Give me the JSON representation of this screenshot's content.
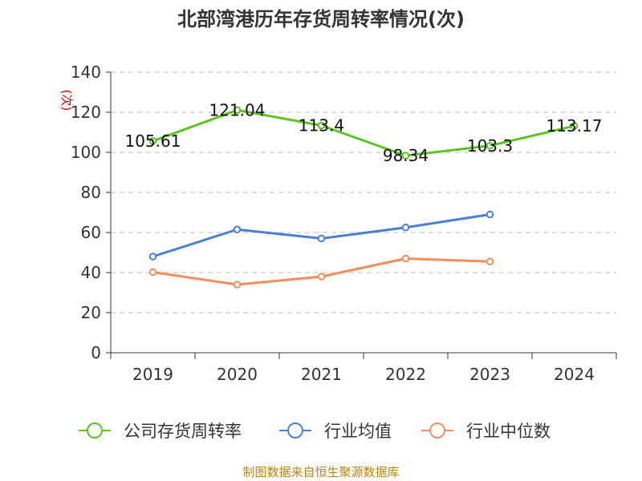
{
  "chart_data": {
    "type": "line",
    "title": "北部湾港历年存货周转率情况(次)",
    "ylabel": "(次)",
    "xlabel": "",
    "categories": [
      "2019",
      "2020",
      "2021",
      "2022",
      "2023",
      "2024"
    ],
    "ylim": [
      0,
      140
    ],
    "yticks": [
      0,
      20,
      40,
      60,
      80,
      100,
      120,
      140
    ],
    "grid": true,
    "legend_position": "bottom",
    "series": [
      {
        "name": "公司存货周转率",
        "color": "#5cc41f",
        "values": [
          105.61,
          121.04,
          113.4,
          98.34,
          103.3,
          113.17
        ],
        "labels": [
          "105.61",
          "121.04",
          "113.4",
          "98.34",
          "103.3",
          "113.17"
        ]
      },
      {
        "name": "行业均值",
        "color": "#4a7fd6",
        "values": [
          48,
          61.5,
          57,
          62.5,
          69,
          null
        ]
      },
      {
        "name": "行业中位数",
        "color": "#f48c5c",
        "values": [
          40.2,
          34,
          38,
          47,
          45.5,
          null
        ]
      }
    ]
  },
  "footer": {
    "source": "制图数据来自恒生聚源数据库"
  }
}
